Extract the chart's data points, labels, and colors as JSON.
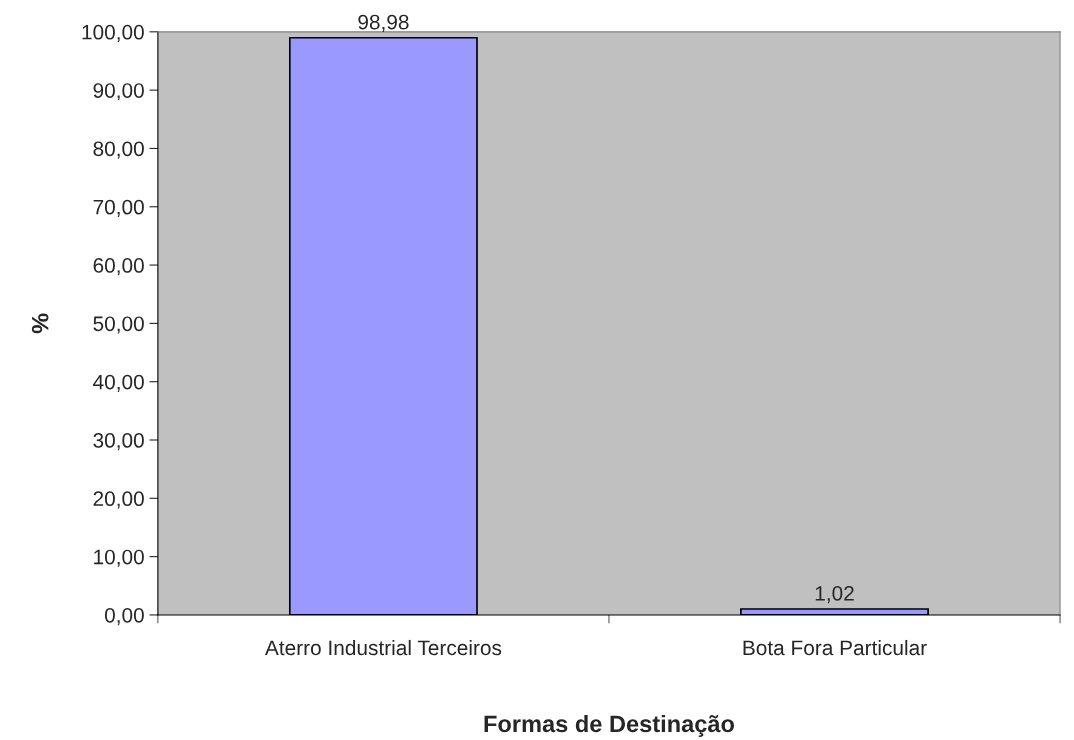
{
  "chart_data": {
    "type": "bar",
    "xlabel": "Formas de Destinação",
    "ylabel": "%",
    "categories": [
      "Aterro Industrial Terceiros",
      "Bota Fora Particular"
    ],
    "series": [
      {
        "color": "#9999ff",
        "values": [
          98.98,
          1.02
        ],
        "value_labels": [
          "98,98",
          "1,02"
        ]
      }
    ],
    "ylim": [
      0,
      100
    ],
    "yticks": [
      {
        "value": 0,
        "label": "0,00"
      },
      {
        "value": 10,
        "label": "10,00"
      },
      {
        "value": 20,
        "label": "20,00"
      },
      {
        "value": 30,
        "label": "30,00"
      },
      {
        "value": 40,
        "label": "40,00"
      },
      {
        "value": 50,
        "label": "50,00"
      },
      {
        "value": 60,
        "label": "60,00"
      },
      {
        "value": 70,
        "label": "70,00"
      },
      {
        "value": 80,
        "label": "80,00"
      },
      {
        "value": 90,
        "label": "90,00"
      },
      {
        "value": 100,
        "label": "100,00"
      }
    ],
    "grid": false,
    "legend": false
  }
}
